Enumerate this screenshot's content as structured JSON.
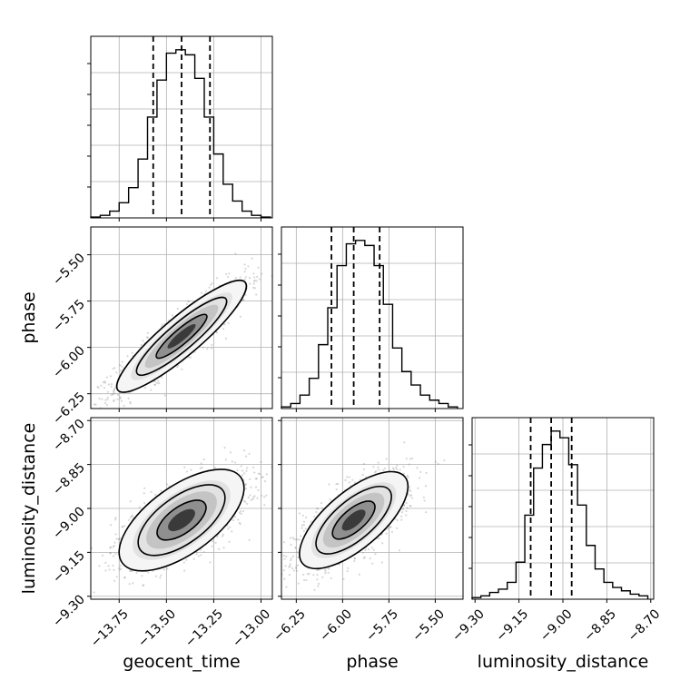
{
  "chart_data": {
    "type": "corner",
    "parameters": [
      "geocent_time",
      "phase",
      "luminosity_distance"
    ],
    "ranges": {
      "geocent_time": [
        -13.9,
        -12.94
      ],
      "phase": [
        -6.33,
        -5.35
      ],
      "luminosity_distance": [
        -9.31,
        -8.69
      ]
    },
    "ticks": {
      "geocent_time": [
        -13.75,
        -13.5,
        -13.25,
        -13.0
      ],
      "phase": [
        -6.25,
        -6.0,
        -5.75,
        -5.5
      ],
      "luminosity_distance": [
        -9.3,
        -9.15,
        -9.0,
        -8.85,
        -8.7
      ]
    },
    "tick_labels": {
      "geocent_time": [
        "−13.75",
        "−13.50",
        "−13.25",
        "−13.00"
      ],
      "phase": [
        "−6.25",
        "−6.00",
        "−5.75",
        "−5.50"
      ],
      "luminosity_distance": [
        "−9.30",
        "−9.15",
        "−9.00",
        "−8.85",
        "−8.70"
      ]
    },
    "quantile_lines": {
      "geocent_time": [
        -13.57,
        -13.42,
        -13.27
      ],
      "phase": [
        -6.06,
        -5.94,
        -5.8
      ],
      "luminosity_distance": [
        -9.11,
        -9.04,
        -8.97
      ]
    },
    "histograms": {
      "geocent_time": {
        "edges": [
          -13.9,
          -13.85,
          -13.8,
          -13.75,
          -13.7,
          -13.65,
          -13.6,
          -13.55,
          -13.5,
          -13.45,
          -13.4,
          -13.35,
          -13.3,
          -13.25,
          -13.2,
          -13.15,
          -13.1,
          -13.05,
          -13.0,
          -12.95
        ],
        "counts": [
          0.5,
          1.5,
          4,
          9,
          18,
          35,
          60,
          82,
          98,
          100,
          97,
          83,
          60,
          38,
          20,
          10,
          4,
          1.5,
          0.5
        ]
      },
      "phase": {
        "edges": [
          -6.33,
          -6.28,
          -6.23,
          -6.18,
          -6.13,
          -6.08,
          -6.03,
          -5.98,
          -5.93,
          -5.88,
          -5.83,
          -5.78,
          -5.73,
          -5.68,
          -5.63,
          -5.58,
          -5.53,
          -5.48,
          -5.43,
          -5.38
        ],
        "counts": [
          1,
          3,
          8,
          18,
          38,
          60,
          85,
          98,
          100,
          97,
          85,
          62,
          36,
          22,
          14,
          8,
          5,
          3,
          1
        ]
      },
      "luminosity_distance": {
        "edges": [
          -9.31,
          -9.28,
          -9.25,
          -9.22,
          -9.19,
          -9.16,
          -9.13,
          -9.1,
          -9.07,
          -9.04,
          -9.01,
          -8.98,
          -8.95,
          -8.92,
          -8.89,
          -8.86,
          -8.83,
          -8.8,
          -8.77,
          -8.74,
          -8.71
        ],
        "counts": [
          1,
          2,
          4,
          6,
          10,
          22,
          50,
          78,
          92,
          100,
          96,
          80,
          56,
          32,
          18,
          10,
          7,
          5,
          3,
          2
        ]
      }
    },
    "correlations": {
      "phase_vs_geocent_time": 0.9,
      "luminosity_distance_vs_geocent_time": 0.65,
      "luminosity_distance_vs_phase": 0.7
    },
    "grid": true,
    "colors": {
      "line": "#000000",
      "scatter": "#8c8c8c",
      "grid": "#b0b0b0"
    }
  }
}
